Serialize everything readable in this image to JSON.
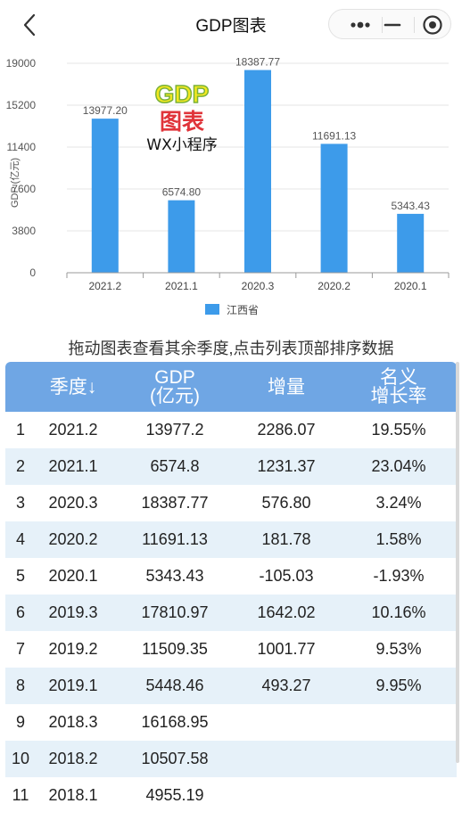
{
  "nav": {
    "title": "GDP图表",
    "back_icon": "chevron-left-icon",
    "more_icon": "more-dots-icon",
    "minimize_icon": "minus-icon",
    "close_icon": "target-circle-icon"
  },
  "watermark": {
    "logo_line1": "GDP",
    "logo_line2": "图表",
    "caption": "WX小程序"
  },
  "chart_data": {
    "type": "bar",
    "categories": [
      "2021.2",
      "2021.1",
      "2020.3",
      "2020.2",
      "2020.1"
    ],
    "series": [
      {
        "name": "江西省",
        "values": [
          13977.2,
          6574.8,
          18387.77,
          11691.13,
          5343.43
        ],
        "labels": [
          "13977.20",
          "6574.80",
          "18387.77",
          "11691.13",
          "5343.43"
        ]
      }
    ],
    "ylabel": "GDP (亿元)",
    "yticks": [
      0,
      3800,
      7600,
      11400,
      15200,
      19000
    ],
    "ylim": [
      0,
      19000
    ],
    "legend_position": "bottom-center",
    "bar_color": "#3d9bea",
    "grid": true
  },
  "hint": "拖动图表查看其余季度,点击列表顶部排序数据",
  "table": {
    "header_color": "#6fa6e4",
    "stripe_color": "#e6f1f9",
    "headers": {
      "quarter": "季度↓",
      "gdp_line1": "GDP",
      "gdp_line2": "(亿元)",
      "increase": "增量",
      "rate_line1": "名义",
      "rate_line2": "增长率"
    },
    "rows": [
      {
        "rank": "1",
        "quarter": "2021.2",
        "gdp": "13977.2",
        "increase": "2286.07",
        "rate": "19.55%"
      },
      {
        "rank": "2",
        "quarter": "2021.1",
        "gdp": "6574.8",
        "increase": "1231.37",
        "rate": "23.04%"
      },
      {
        "rank": "3",
        "quarter": "2020.3",
        "gdp": "18387.77",
        "increase": "576.80",
        "rate": "3.24%"
      },
      {
        "rank": "4",
        "quarter": "2020.2",
        "gdp": "11691.13",
        "increase": "181.78",
        "rate": "1.58%"
      },
      {
        "rank": "5",
        "quarter": "2020.1",
        "gdp": "5343.43",
        "increase": "-105.03",
        "rate": "-1.93%"
      },
      {
        "rank": "6",
        "quarter": "2019.3",
        "gdp": "17810.97",
        "increase": "1642.02",
        "rate": "10.16%"
      },
      {
        "rank": "7",
        "quarter": "2019.2",
        "gdp": "11509.35",
        "increase": "1001.77",
        "rate": "9.53%"
      },
      {
        "rank": "8",
        "quarter": "2019.1",
        "gdp": "5448.46",
        "increase": "493.27",
        "rate": "9.95%"
      },
      {
        "rank": "9",
        "quarter": "2018.3",
        "gdp": "16168.95",
        "increase": "",
        "rate": ""
      },
      {
        "rank": "10",
        "quarter": "2018.2",
        "gdp": "10507.58",
        "increase": "",
        "rate": ""
      },
      {
        "rank": "11",
        "quarter": "2018.1",
        "gdp": "4955.19",
        "increase": "",
        "rate": ""
      }
    ]
  }
}
